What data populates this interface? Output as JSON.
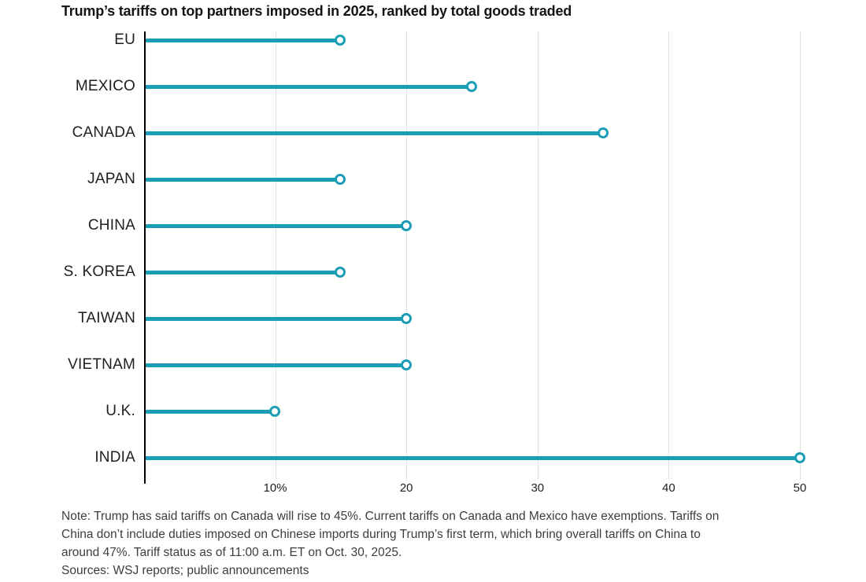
{
  "chart_data": {
    "type": "bar",
    "style": "lollipop",
    "orientation": "horizontal",
    "title": "Trump’s tariffs on top partners imposed in 2025, ranked by total goods traded",
    "categories": [
      "EU",
      "MEXICO",
      "CANADA",
      "JAPAN",
      "CHINA",
      "S. KOREA",
      "TAIWAN",
      "VIETNAM",
      "U.K.",
      "INDIA"
    ],
    "values": [
      15,
      25,
      35,
      15,
      20,
      15,
      20,
      20,
      10,
      50
    ],
    "unit": "%",
    "xlabel": "",
    "ylabel": "",
    "xlim": [
      0,
      51
    ],
    "xticks": [
      {
        "value": 10,
        "label": "10%"
      },
      {
        "value": 20,
        "label": "20"
      },
      {
        "value": 30,
        "label": "30"
      },
      {
        "value": 40,
        "label": "40"
      },
      {
        "value": 50,
        "label": "50"
      }
    ],
    "grid": true,
    "legend": false,
    "accent_color": "#1b9eb5",
    "axis_color": "#000000",
    "gridline_color": "#e3e3e3"
  },
  "note_lines": [
    "Note: Trump has said tariffs on Canada will rise to 45%. Current tariffs on Canada and Mexico have exemptions. Tariffs on",
    "China don’t include duties imposed on Chinese imports during Trump’s first term, which bring overall tariffs on China to",
    "around 47%. Tariff status as of 11:00 a.m. ET on Oct. 30, 2025."
  ],
  "sources": "Sources: WSJ reports; public announcements"
}
